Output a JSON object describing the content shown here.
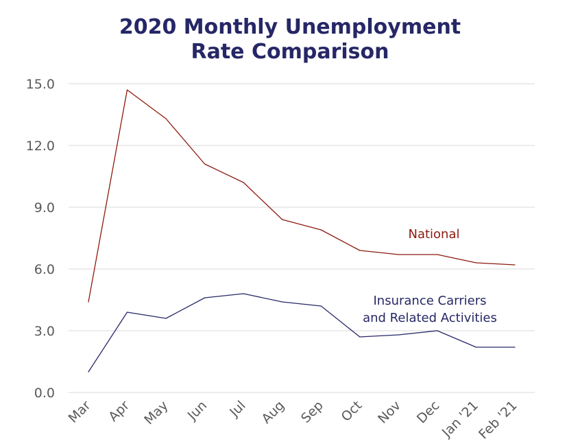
{
  "chart_data": {
    "type": "line",
    "title_lines": [
      "2020 Monthly Unemployment",
      "Rate Comparison"
    ],
    "categories": [
      "Mar",
      "Apr",
      "May",
      "Jun",
      "Jul",
      "Aug",
      "Sep",
      "Oct",
      "Nov",
      "Dec",
      "Jan '21",
      "Feb '21"
    ],
    "ylim": [
      0,
      15
    ],
    "yticks": [
      "0.0",
      "3.0",
      "6.0",
      "9.0",
      "12.0",
      "15.0"
    ],
    "grid": true,
    "series": [
      {
        "name": "National",
        "color": "#8b1a0e",
        "values": [
          4.4,
          14.7,
          13.3,
          11.1,
          10.2,
          8.4,
          7.9,
          6.9,
          6.7,
          6.7,
          6.3,
          6.2
        ],
        "label_lines": [
          "National"
        ]
      },
      {
        "name": "Insurance Carriers and Related Activities",
        "color": "#262766",
        "values": [
          1.0,
          3.9,
          3.6,
          4.6,
          4.8,
          4.4,
          4.2,
          2.7,
          2.8,
          3.0,
          2.2,
          2.2
        ],
        "label_lines": [
          "Insurance Carriers",
          "and Related Activities"
        ]
      }
    ]
  }
}
